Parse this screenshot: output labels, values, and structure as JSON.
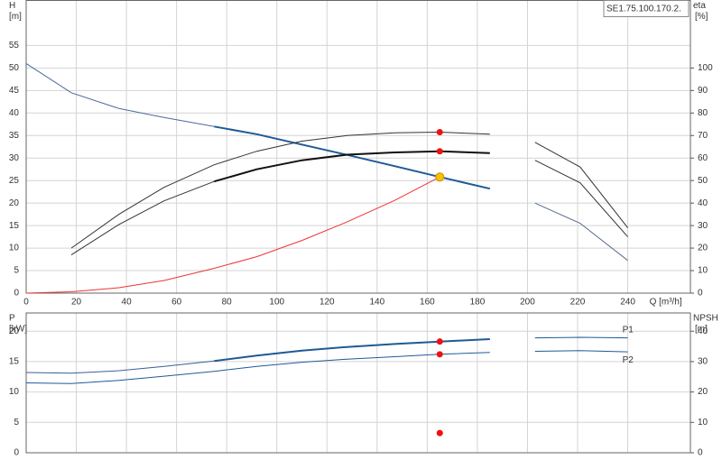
{
  "chart_data": [
    {
      "type": "line",
      "title": "SE1.75.100.170.2.",
      "x_label": "Q [m³/h]",
      "y_label": "H",
      "y_unit": "[m]",
      "y2_label": "eta",
      "y2_unit": "[%]",
      "x": [
        0,
        18,
        37,
        55,
        75,
        92,
        110,
        128,
        147,
        165,
        185,
        194,
        203,
        221,
        240
      ],
      "xlim": [
        0,
        265
      ],
      "xticks": [
        0,
        20,
        40,
        60,
        80,
        100,
        120,
        140,
        160,
        180,
        200,
        220,
        240
      ],
      "xtick_labels": true,
      "ylim": [
        0,
        65
      ],
      "yticks": [
        0,
        5,
        10,
        15,
        20,
        25,
        30,
        35,
        40,
        45,
        50,
        55
      ],
      "y2lim": [
        0,
        130
      ],
      "y2ticks": [
        0,
        10,
        20,
        30,
        40,
        50,
        60,
        70,
        80,
        90,
        100
      ],
      "grid": true,
      "series": [
        {
          "color": "#4a6a9e",
          "width": 1,
          "values": [
            51,
            44.5,
            41,
            39,
            37,
            null,
            null,
            null,
            null,
            null,
            null,
            null,
            null,
            null,
            null
          ]
        },
        {
          "color": "#1f5a96",
          "width": 2,
          "values": [
            null,
            null,
            null,
            null,
            37,
            35.3,
            33,
            30.7,
            28.2,
            25.8,
            23.2,
            null,
            null,
            null,
            null
          ]
        },
        {
          "color": "#333333",
          "width": 1,
          "axis": "y2",
          "values": [
            null,
            20,
            35,
            47,
            57,
            63,
            67.5,
            70,
            71.2,
            71.5,
            70.6,
            null,
            67,
            56,
            29
          ]
        },
        {
          "color": "#333333",
          "width": 1,
          "axis": "y2",
          "values": [
            null,
            17,
            30.5,
            41,
            49.6,
            null,
            null,
            null,
            null,
            null,
            null,
            null,
            59,
            49,
            25
          ]
        },
        {
          "color": "#111111",
          "width": 2,
          "axis": "y2",
          "values": [
            null,
            null,
            null,
            null,
            49.6,
            55,
            59,
            61.5,
            62.5,
            63,
            62.2,
            null,
            null,
            null,
            null
          ]
        },
        {
          "color": "#5a6e8c",
          "width": 1,
          "axis": "y2",
          "values": [
            null,
            null,
            null,
            null,
            null,
            null,
            null,
            null,
            null,
            null,
            null,
            null,
            40,
            31,
            14.5
          ]
        },
        {
          "color": "#ee3333",
          "width": 1,
          "values": [
            0,
            0.3,
            1.2,
            2.8,
            5.5,
            8.1,
            11.7,
            15.8,
            20.6,
            25.8,
            null,
            null,
            null,
            null,
            null
          ]
        }
      ],
      "points": [
        {
          "x": 165,
          "y": 71.5,
          "axis": "y2",
          "color": "#ee1111"
        },
        {
          "x": 165,
          "y": 63,
          "axis": "y2",
          "color": "#ee1111"
        },
        {
          "x": 165,
          "y": 25.8,
          "color": "#f5c400"
        }
      ]
    },
    {
      "type": "line",
      "y_label": "P",
      "y_unit": "[kW]",
      "y2_label": "NPSH",
      "y2_unit": "[m]",
      "x": [
        0,
        18,
        37,
        55,
        75,
        92,
        110,
        128,
        147,
        165,
        185,
        194,
        203,
        221,
        240
      ],
      "xlim": [
        0,
        265
      ],
      "xticks": [
        0,
        20,
        40,
        60,
        80,
        100,
        120,
        140,
        160,
        180,
        200,
        220,
        240
      ],
      "xtick_labels": false,
      "ylim": [
        0,
        23
      ],
      "yticks": [
        0,
        5,
        10,
        15,
        20
      ],
      "y2lim": [
        0,
        46
      ],
      "y2ticks": [
        0,
        10,
        20,
        30,
        40
      ],
      "grid": true,
      "series": [
        {
          "color": "#3a5f96",
          "width": 1,
          "values": [
            13.2,
            13.1,
            13.5,
            14.2,
            15.1,
            null,
            null,
            null,
            null,
            null,
            null,
            null,
            null,
            null,
            null
          ]
        },
        {
          "color": "#1f5a96",
          "width": 2,
          "values": [
            null,
            null,
            null,
            null,
            15.1,
            16,
            16.8,
            17.4,
            17.9,
            18.3,
            18.7,
            null,
            null,
            null,
            null
          ]
        },
        {
          "color": "#1f5a96",
          "width": 1,
          "label": "P1",
          "values": [
            null,
            null,
            null,
            null,
            null,
            null,
            null,
            null,
            null,
            null,
            null,
            null,
            18.9,
            19,
            18.9
          ]
        },
        {
          "color": "#1f5a96",
          "width": 1,
          "label": "P2",
          "values": [
            11.5,
            11.4,
            11.9,
            12.6,
            13.4,
            14.2,
            14.9,
            15.4,
            15.8,
            16.2,
            16.5,
            null,
            16.7,
            16.8,
            16.6
          ]
        }
      ],
      "points": [
        {
          "x": 165,
          "y": 18.3,
          "color": "#ee1111"
        },
        {
          "x": 165,
          "y": 16.2,
          "color": "#ee1111"
        },
        {
          "x": 165,
          "y": 6.5,
          "axis": "y2",
          "color": "#ee1111"
        }
      ]
    }
  ]
}
